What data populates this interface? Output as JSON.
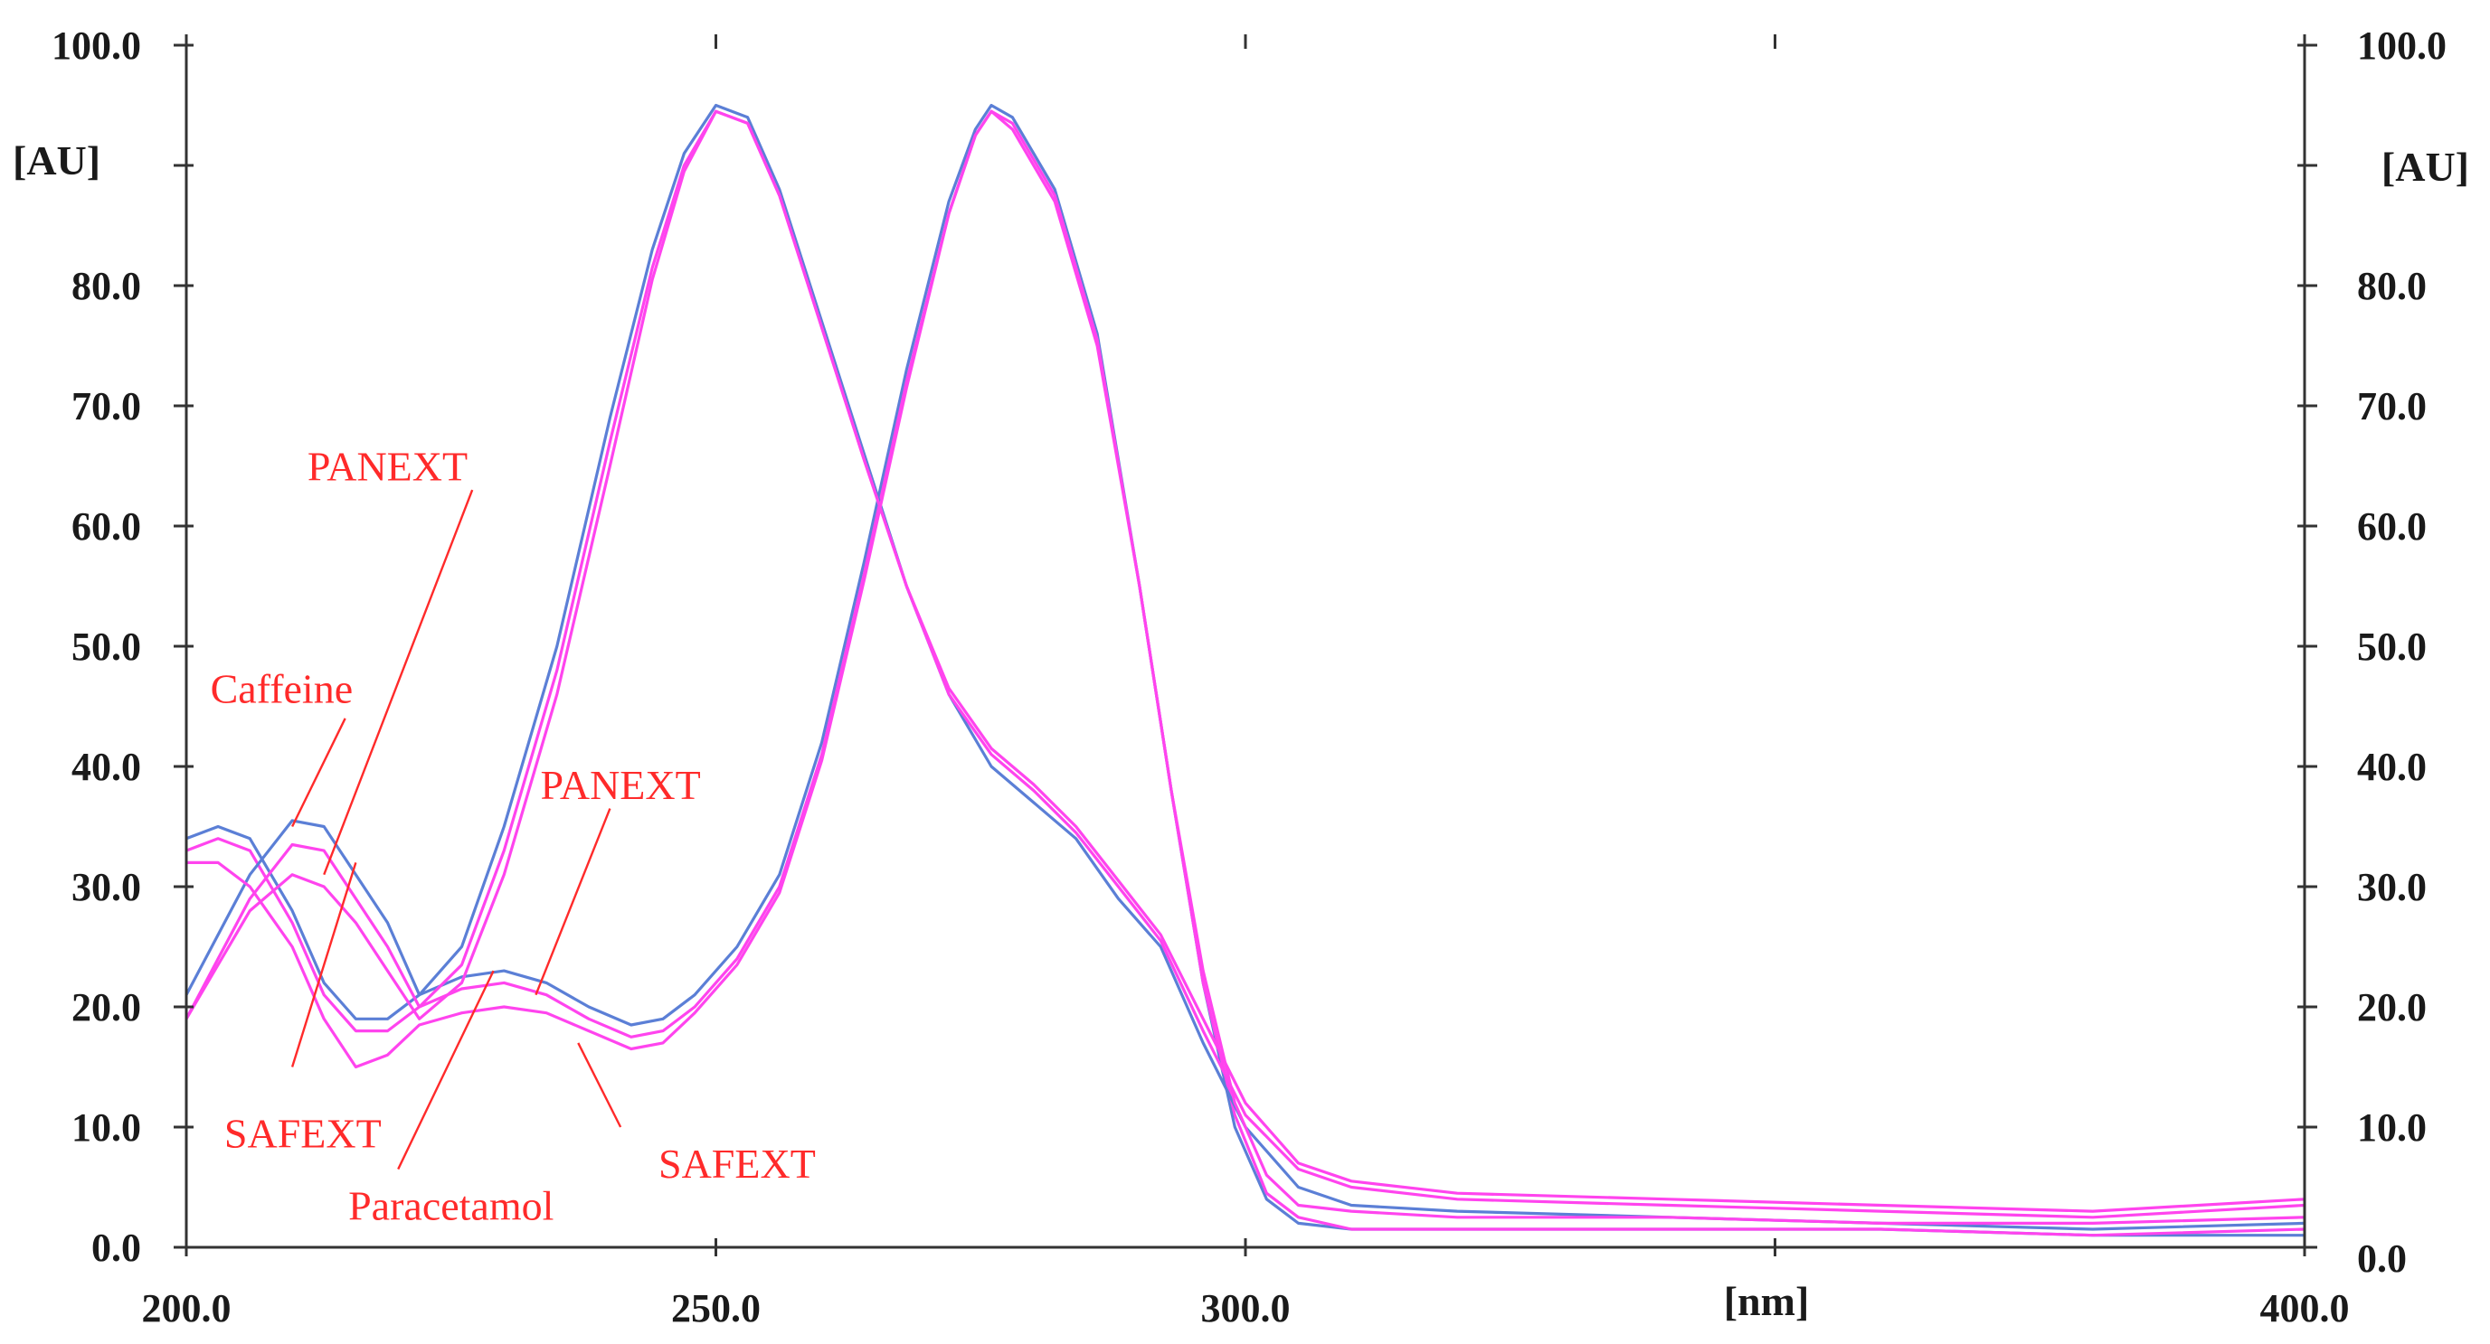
{
  "chart_data": {
    "type": "line",
    "title": "",
    "xlabel": "[nm]",
    "ylabel_left": "[AU]",
    "ylabel_right": "[AU]",
    "xlim": [
      200,
      400
    ],
    "ylim": [
      0,
      100
    ],
    "x_tick_labels": [
      "200.0",
      "250.0",
      "300.0",
      "400.0"
    ],
    "x_ticks": [
      200,
      250,
      300,
      350,
      400
    ],
    "y_tick_labels": [
      "0.0",
      "10.0",
      "20.0",
      "30.0",
      "40.0",
      "50.0",
      "60.0",
      "70.0",
      "80.0",
      "100.0"
    ],
    "y_ticks": [
      0,
      10,
      20,
      30,
      40,
      50,
      60,
      70,
      80,
      90,
      100
    ],
    "grid": false,
    "legend": "none",
    "colors": {
      "blue": "#5b7fd6",
      "magenta": "#ff44ee",
      "annotation": "#ff2a2a"
    },
    "series": [
      {
        "color": "#5b7fd6",
        "points": [
          [
            200,
            34
          ],
          [
            203,
            35
          ],
          [
            206,
            34
          ],
          [
            210,
            28
          ],
          [
            213,
            22
          ],
          [
            216,
            19
          ],
          [
            219,
            19
          ],
          [
            222,
            21
          ],
          [
            226,
            22.5
          ],
          [
            230,
            23
          ],
          [
            234,
            22
          ],
          [
            238,
            20
          ],
          [
            242,
            18.5
          ],
          [
            245,
            19
          ],
          [
            248,
            21
          ],
          [
            252,
            25
          ],
          [
            256,
            31
          ],
          [
            260,
            42
          ],
          [
            264,
            57
          ],
          [
            268,
            73
          ],
          [
            272,
            87
          ],
          [
            274.5,
            93
          ],
          [
            276,
            95
          ],
          [
            278,
            94
          ],
          [
            282,
            88
          ],
          [
            286,
            76
          ],
          [
            290,
            55
          ],
          [
            293,
            38
          ],
          [
            296,
            22
          ],
          [
            299,
            10
          ],
          [
            302,
            4
          ],
          [
            305,
            2
          ],
          [
            310,
            1.5
          ],
          [
            320,
            1.5
          ],
          [
            340,
            1.5
          ],
          [
            360,
            1.5
          ],
          [
            380,
            1
          ],
          [
            400,
            1
          ]
        ]
      },
      {
        "color": "#ff44ee",
        "points": [
          [
            200,
            33
          ],
          [
            203,
            34
          ],
          [
            206,
            33
          ],
          [
            210,
            27
          ],
          [
            213,
            21
          ],
          [
            216,
            18
          ],
          [
            219,
            18
          ],
          [
            222,
            20
          ],
          [
            226,
            21.5
          ],
          [
            230,
            22
          ],
          [
            234,
            21
          ],
          [
            238,
            19
          ],
          [
            242,
            17.5
          ],
          [
            245,
            18
          ],
          [
            248,
            20
          ],
          [
            252,
            24
          ],
          [
            256,
            30
          ],
          [
            260,
            41
          ],
          [
            264,
            56
          ],
          [
            268,
            72
          ],
          [
            272,
            86
          ],
          [
            274.5,
            92.5
          ],
          [
            276,
            94.5
          ],
          [
            278,
            93.5
          ],
          [
            282,
            87.5
          ],
          [
            286,
            75.5
          ],
          [
            290,
            55
          ],
          [
            293,
            38
          ],
          [
            296,
            22
          ],
          [
            299,
            11
          ],
          [
            302,
            4.5
          ],
          [
            305,
            2.5
          ],
          [
            310,
            1.5
          ],
          [
            320,
            1.5
          ],
          [
            340,
            1.5
          ],
          [
            360,
            1.5
          ],
          [
            380,
            1
          ],
          [
            400,
            1.5
          ]
        ]
      },
      {
        "color": "#5b7fd6",
        "points": [
          [
            200,
            21
          ],
          [
            203,
            26
          ],
          [
            206,
            31
          ],
          [
            210,
            35.5
          ],
          [
            213,
            35
          ],
          [
            216,
            31
          ],
          [
            219,
            27
          ],
          [
            222,
            21
          ],
          [
            226,
            25
          ],
          [
            230,
            35
          ],
          [
            235,
            50
          ],
          [
            240,
            69
          ],
          [
            244,
            83
          ],
          [
            247,
            91
          ],
          [
            250,
            95
          ],
          [
            253,
            94
          ],
          [
            256,
            88
          ],
          [
            260,
            77
          ],
          [
            264,
            66
          ],
          [
            268,
            55
          ],
          [
            272,
            46
          ],
          [
            276,
            40
          ],
          [
            280,
            37
          ],
          [
            284,
            34
          ],
          [
            288,
            29
          ],
          [
            292,
            25
          ],
          [
            296,
            17
          ],
          [
            300,
            10
          ],
          [
            305,
            5
          ],
          [
            310,
            3.5
          ],
          [
            320,
            3
          ],
          [
            340,
            2.5
          ],
          [
            360,
            2
          ],
          [
            380,
            1.5
          ],
          [
            400,
            2
          ]
        ]
      },
      {
        "color": "#ff44ee",
        "points": [
          [
            200,
            19
          ],
          [
            203,
            24
          ],
          [
            206,
            29
          ],
          [
            210,
            33.5
          ],
          [
            213,
            33
          ],
          [
            216,
            29
          ],
          [
            219,
            25
          ],
          [
            222,
            20
          ],
          [
            226,
            23.5
          ],
          [
            230,
            33
          ],
          [
            235,
            48
          ],
          [
            240,
            67
          ],
          [
            244,
            81.5
          ],
          [
            247,
            90
          ],
          [
            250,
            94.5
          ],
          [
            253,
            93.5
          ],
          [
            256,
            87.5
          ],
          [
            260,
            76.5
          ],
          [
            264,
            65.5
          ],
          [
            268,
            55
          ],
          [
            272,
            46
          ],
          [
            276,
            41
          ],
          [
            280,
            38
          ],
          [
            284,
            34.5
          ],
          [
            288,
            30
          ],
          [
            292,
            25.5
          ],
          [
            296,
            18
          ],
          [
            300,
            11
          ],
          [
            305,
            6.5
          ],
          [
            310,
            5
          ],
          [
            320,
            4
          ],
          [
            340,
            3.5
          ],
          [
            360,
            3
          ],
          [
            380,
            2.5
          ],
          [
            400,
            3.5
          ]
        ]
      },
      {
        "color": "#ff44ee",
        "points": [
          [
            200,
            32
          ],
          [
            203,
            32
          ],
          [
            206,
            30
          ],
          [
            210,
            25
          ],
          [
            213,
            19
          ],
          [
            216,
            15
          ],
          [
            219,
            16
          ],
          [
            222,
            18.5
          ],
          [
            226,
            19.5
          ],
          [
            230,
            20
          ],
          [
            234,
            19.5
          ],
          [
            238,
            18
          ],
          [
            242,
            16.5
          ],
          [
            245,
            17
          ],
          [
            248,
            19.5
          ],
          [
            252,
            23.5
          ],
          [
            256,
            29.5
          ],
          [
            260,
            40.5
          ],
          [
            264,
            55.5
          ],
          [
            268,
            71.5
          ],
          [
            272,
            86
          ],
          [
            274.5,
            92.5
          ],
          [
            276,
            94.5
          ],
          [
            278,
            93
          ],
          [
            282,
            87
          ],
          [
            286,
            75
          ],
          [
            290,
            55
          ],
          [
            293,
            38
          ],
          [
            296,
            23
          ],
          [
            299,
            12
          ],
          [
            302,
            6
          ],
          [
            305,
            3.5
          ],
          [
            310,
            3
          ],
          [
            320,
            2.5
          ],
          [
            340,
            2.5
          ],
          [
            360,
            2
          ],
          [
            380,
            2
          ],
          [
            400,
            2.5
          ]
        ]
      },
      {
        "color": "#ff44ee",
        "points": [
          [
            200,
            19
          ],
          [
            203,
            23.5
          ],
          [
            206,
            28
          ],
          [
            210,
            31
          ],
          [
            213,
            30
          ],
          [
            216,
            27
          ],
          [
            219,
            23
          ],
          [
            222,
            19
          ],
          [
            226,
            22
          ],
          [
            230,
            31
          ],
          [
            235,
            46
          ],
          [
            240,
            65
          ],
          [
            244,
            80.5
          ],
          [
            247,
            89.5
          ],
          [
            250,
            94.5
          ],
          [
            253,
            93.5
          ],
          [
            256,
            87.5
          ],
          [
            260,
            76.5
          ],
          [
            264,
            65.5
          ],
          [
            268,
            55
          ],
          [
            272,
            46.5
          ],
          [
            276,
            41.5
          ],
          [
            280,
            38.5
          ],
          [
            284,
            35
          ],
          [
            288,
            30.5
          ],
          [
            292,
            26
          ],
          [
            296,
            19
          ],
          [
            300,
            12
          ],
          [
            305,
            7
          ],
          [
            310,
            5.5
          ],
          [
            320,
            4.5
          ],
          [
            340,
            4
          ],
          [
            360,
            3.5
          ],
          [
            380,
            3
          ],
          [
            400,
            4
          ]
        ]
      }
    ],
    "annotations": [
      {
        "text": "PANEXT",
        "x": 219,
        "y": 65,
        "line_from": [
          227,
          63
        ],
        "line_to": [
          213,
          31
        ]
      },
      {
        "text": "Caffeine",
        "x": 209,
        "y": 46.5,
        "line_from": [
          215,
          44
        ],
        "line_to": [
          210,
          35
        ]
      },
      {
        "text": "PANEXT",
        "x": 241,
        "y": 38.5,
        "line_from": [
          240,
          36.5
        ],
        "line_to": [
          233,
          21
        ]
      },
      {
        "text": "SAFEXT",
        "x": 211,
        "y": 9.5,
        "line_from": [
          210,
          15
        ],
        "line_to": [
          216,
          32
        ]
      },
      {
        "text": "Paracetamol",
        "x": 225,
        "y": 3.5,
        "line_from": [
          220,
          6.5
        ],
        "line_to": [
          229,
          23
        ]
      },
      {
        "text": "SAFEXT",
        "x": 252,
        "y": 7,
        "line_from": [
          241,
          10
        ],
        "line_to": [
          237,
          17
        ]
      }
    ]
  }
}
